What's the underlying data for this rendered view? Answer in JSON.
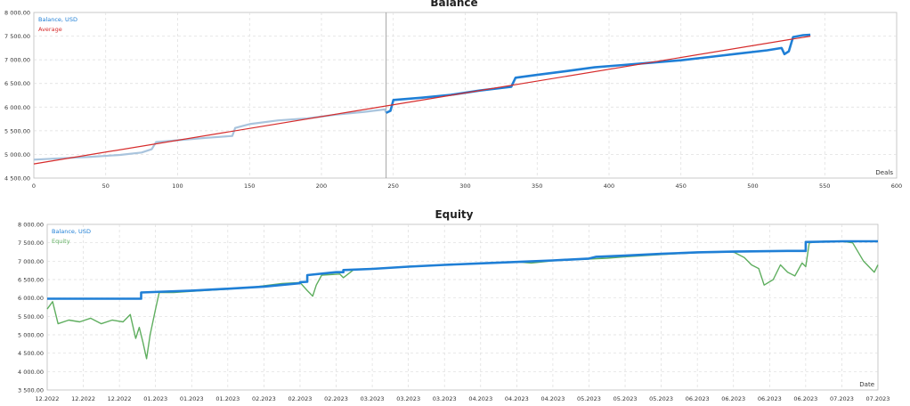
{
  "colors": {
    "balance": "#1f7fd6",
    "balance_faded": "#a9c4dd",
    "average": "#d62b2b",
    "equity": "#5fae5f",
    "grid": "#dcdcdc",
    "frame": "#bdbdbd",
    "divider": "#9a9a9a"
  },
  "chart_data": [
    {
      "type": "line",
      "title": "Balance",
      "xlabel": "Deals",
      "x_range": [
        0,
        600
      ],
      "ylim": [
        4500,
        8000
      ],
      "x_ticks": [
        0,
        50,
        100,
        150,
        200,
        250,
        300,
        350,
        400,
        450,
        500,
        550,
        600
      ],
      "y_ticks": [
        4500,
        5000,
        5500,
        6000,
        6500,
        7000,
        7500,
        8000
      ],
      "y_tick_labels": [
        "4 500.00",
        "5 000.00",
        "5 500.00",
        "6 000.00",
        "6 500.00",
        "7 000.00",
        "7 500.00",
        "8 000.00"
      ],
      "grid": true,
      "legend_position": "top-left",
      "divider_x": 245,
      "series": [
        {
          "name": "Balance, USD",
          "color": "#1f7fd6",
          "faded_before_x": 245,
          "points": [
            [
              0,
              4890
            ],
            [
              20,
              4920
            ],
            [
              40,
              4950
            ],
            [
              60,
              4990
            ],
            [
              75,
              5040
            ],
            [
              82,
              5110
            ],
            [
              85,
              5260
            ],
            [
              100,
              5300
            ],
            [
              120,
              5350
            ],
            [
              138,
              5390
            ],
            [
              140,
              5560
            ],
            [
              150,
              5640
            ],
            [
              170,
              5720
            ],
            [
              190,
              5760
            ],
            [
              210,
              5840
            ],
            [
              230,
              5900
            ],
            [
              244,
              5950
            ],
            [
              245,
              5880
            ],
            [
              248,
              5920
            ],
            [
              250,
              6150
            ],
            [
              270,
              6200
            ],
            [
              290,
              6260
            ],
            [
              310,
              6350
            ],
            [
              332,
              6430
            ],
            [
              335,
              6620
            ],
            [
              350,
              6680
            ],
            [
              370,
              6760
            ],
            [
              390,
              6840
            ],
            [
              410,
              6890
            ],
            [
              430,
              6940
            ],
            [
              450,
              6990
            ],
            [
              470,
              7060
            ],
            [
              490,
              7130
            ],
            [
              510,
              7200
            ],
            [
              520,
              7250
            ],
            [
              522,
              7120
            ],
            [
              525,
              7180
            ],
            [
              528,
              7480
            ],
            [
              535,
              7520
            ],
            [
              540,
              7530
            ]
          ]
        },
        {
          "name": "Average",
          "color": "#d62b2b",
          "points": [
            [
              0,
              4800
            ],
            [
              540,
              7500
            ]
          ]
        }
      ]
    },
    {
      "type": "line",
      "title": "Equity",
      "xlabel": "Date",
      "ylim": [
        3500,
        8000
      ],
      "y_ticks": [
        3500,
        4000,
        4500,
        5000,
        5500,
        6000,
        6500,
        7000,
        7500,
        8000
      ],
      "y_tick_labels": [
        "3 500.00",
        "4 000.00",
        "4 500.00",
        "5 000.00",
        "5 500.00",
        "6 000.00",
        "6 500.00",
        "7 000.00",
        "7 500.00",
        "8 000.00"
      ],
      "x_tick_labels": [
        "12.2022",
        "12.2022",
        "12.2022",
        "01.2023",
        "01.2023",
        "01.2023",
        "02.2023",
        "02.2023",
        "02.2023",
        "03.2023",
        "03.2023",
        "03.2023",
        "04.2023",
        "04.2023",
        "04.2023",
        "05.2023",
        "05.2023",
        "05.2023",
        "06.2023",
        "06.2023",
        "06.2023",
        "06.2023",
        "07.2023",
        "07.2023"
      ],
      "x_range": [
        0,
        23
      ],
      "grid": true,
      "legend_position": "top-left",
      "series": [
        {
          "name": "Balance, USD",
          "color": "#1f7fd6",
          "points": [
            [
              0,
              5980
            ],
            [
              2.6,
              5980
            ],
            [
              2.6,
              6150
            ],
            [
              4,
              6200
            ],
            [
              5,
              6250
            ],
            [
              6,
              6310
            ],
            [
              7,
              6400
            ],
            [
              7.0,
              6430
            ],
            [
              7.2,
              6440
            ],
            [
              7.2,
              6620
            ],
            [
              8,
              6700
            ],
            [
              8.2,
              6700
            ],
            [
              8.2,
              6760
            ],
            [
              9,
              6790
            ],
            [
              10,
              6850
            ],
            [
              11,
              6900
            ],
            [
              12,
              6940
            ],
            [
              13,
              6980
            ],
            [
              14,
              7020
            ],
            [
              15,
              7070
            ],
            [
              15.2,
              7120
            ],
            [
              16,
              7150
            ],
            [
              17,
              7200
            ],
            [
              18,
              7240
            ],
            [
              19,
              7260
            ],
            [
              20.5,
              7280
            ],
            [
              21.0,
              7280
            ],
            [
              21.0,
              7520
            ],
            [
              22,
              7540
            ],
            [
              23,
              7540
            ]
          ]
        },
        {
          "name": "Equity",
          "color": "#5fae5f",
          "points": [
            [
              0,
              5700
            ],
            [
              0.15,
              5900
            ],
            [
              0.3,
              5300
            ],
            [
              0.6,
              5400
            ],
            [
              0.9,
              5350
            ],
            [
              1.2,
              5450
            ],
            [
              1.5,
              5300
            ],
            [
              1.8,
              5400
            ],
            [
              2.1,
              5350
            ],
            [
              2.3,
              5550
            ],
            [
              2.45,
              4900
            ],
            [
              2.55,
              5200
            ],
            [
              2.65,
              4800
            ],
            [
              2.75,
              4350
            ],
            [
              2.85,
              5000
            ],
            [
              3.0,
              5700
            ],
            [
              3.1,
              6150
            ],
            [
              3.5,
              6150
            ],
            [
              4,
              6180
            ],
            [
              5,
              6240
            ],
            [
              5.6,
              6280
            ],
            [
              6,
              6330
            ],
            [
              6.5,
              6390
            ],
            [
              7.0,
              6420
            ],
            [
              7.2,
              6200
            ],
            [
              7.35,
              6050
            ],
            [
              7.45,
              6350
            ],
            [
              7.6,
              6620
            ],
            [
              8.1,
              6650
            ],
            [
              8.2,
              6550
            ],
            [
              8.5,
              6780
            ],
            [
              9.2,
              6800
            ],
            [
              9.6,
              6830
            ],
            [
              10,
              6860
            ],
            [
              11,
              6900
            ],
            [
              12,
              6940
            ],
            [
              13,
              6980
            ],
            [
              13.4,
              6950
            ],
            [
              14,
              7010
            ],
            [
              15,
              7060
            ],
            [
              15.5,
              7080
            ],
            [
              16,
              7120
            ],
            [
              17,
              7180
            ],
            [
              18,
              7230
            ],
            [
              19,
              7250
            ],
            [
              19.3,
              7100
            ],
            [
              19.5,
              6900
            ],
            [
              19.7,
              6800
            ],
            [
              19.85,
              6350
            ],
            [
              20.1,
              6500
            ],
            [
              20.3,
              6900
            ],
            [
              20.5,
              6700
            ],
            [
              20.7,
              6600
            ],
            [
              20.9,
              6950
            ],
            [
              21.0,
              6850
            ],
            [
              21.1,
              7500
            ],
            [
              21.5,
              7540
            ],
            [
              22,
              7540
            ],
            [
              22.3,
              7500
            ],
            [
              22.6,
              7000
            ],
            [
              22.8,
              6800
            ],
            [
              22.9,
              6700
            ],
            [
              23,
              6900
            ]
          ]
        }
      ]
    }
  ]
}
